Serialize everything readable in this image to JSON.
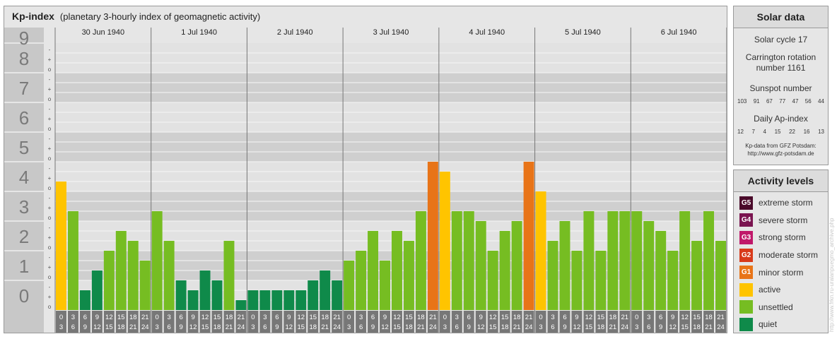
{
  "header": {
    "title": "Kp-index",
    "subtitle": "(planetary 3-hourly index of geomagnetic activity)"
  },
  "chart_data": {
    "type": "bar",
    "title": "Kp-index",
    "ylim": [
      0,
      9
    ],
    "y_tick_labels": [
      "0",
      "1",
      "2",
      "3",
      "4",
      "5",
      "6",
      "7",
      "8",
      "9"
    ],
    "y_sub_labels": [
      "o",
      "+",
      "-"
    ],
    "days": [
      "30 Jun 1940",
      "1 Jul 1940",
      "2 Jul 1940",
      "3 Jul 1940",
      "4 Jul 1940",
      "5 Jul 1940",
      "6 Jul 1940"
    ],
    "interval_starts": [
      "0",
      "3",
      "6",
      "9",
      "12",
      "15",
      "18",
      "21"
    ],
    "interval_ends": [
      "3",
      "6",
      "9",
      "12",
      "15",
      "18",
      "21",
      "24"
    ],
    "values": [
      4.333,
      3.333,
      0.667,
      1.333,
      2.0,
      2.667,
      2.333,
      1.667,
      3.333,
      2.333,
      1.0,
      0.667,
      1.333,
      1.0,
      2.333,
      0.333,
      0.667,
      0.667,
      0.667,
      0.667,
      0.667,
      1.0,
      1.333,
      1.0,
      1.667,
      2.0,
      2.667,
      1.667,
      2.667,
      2.333,
      3.333,
      5.0,
      4.667,
      3.333,
      3.333,
      3.0,
      2.0,
      2.667,
      3.0,
      5.0,
      4.0,
      2.333,
      3.0,
      2.0,
      3.333,
      2.0,
      3.333,
      3.333,
      3.333,
      3.0,
      2.667,
      2.0,
      3.333,
      2.333,
      3.333,
      2.333
    ],
    "level_colors": {
      "quiet": "#0f8a4a",
      "unsettled": "#76bd22",
      "active": "#ffc400",
      "minor_storm": "#e87418"
    }
  },
  "solar": {
    "title": "Solar data",
    "cycle": "Solar cycle 17",
    "carrington": "Carrington rotation number 1161",
    "sunspot_label": "Sunspot number",
    "sunspot_values": [
      "103",
      "91",
      "67",
      "77",
      "47",
      "56",
      "44"
    ],
    "ap_label": "Daily Ap-index",
    "ap_values": [
      "12",
      "7",
      "4",
      "15",
      "22",
      "16",
      "13"
    ],
    "credit_line1": "Kp-data from GFZ Potsdam:",
    "credit_line2": "http://www.gfz-potsdam.de"
  },
  "levels": {
    "title": "Activity levels",
    "items": [
      {
        "code": "G5",
        "label": "extreme storm",
        "color": "#4a0a2a"
      },
      {
        "code": "G4",
        "label": "severe storm",
        "color": "#7a1450"
      },
      {
        "code": "G3",
        "label": "strong storm",
        "color": "#c0186a"
      },
      {
        "code": "G2",
        "label": "moderate storm",
        "color": "#d83a1a"
      },
      {
        "code": "G1",
        "label": "minor storm",
        "color": "#e87418"
      },
      {
        "code": "",
        "label": "active",
        "color": "#ffc400"
      },
      {
        "code": "",
        "label": "unsettled",
        "color": "#76bd22"
      },
      {
        "code": "",
        "label": "quiet",
        "color": "#0f8a4a"
      }
    ]
  },
  "watermark": "http://www.frkn.ru-uralanpuegmo_archive.php"
}
